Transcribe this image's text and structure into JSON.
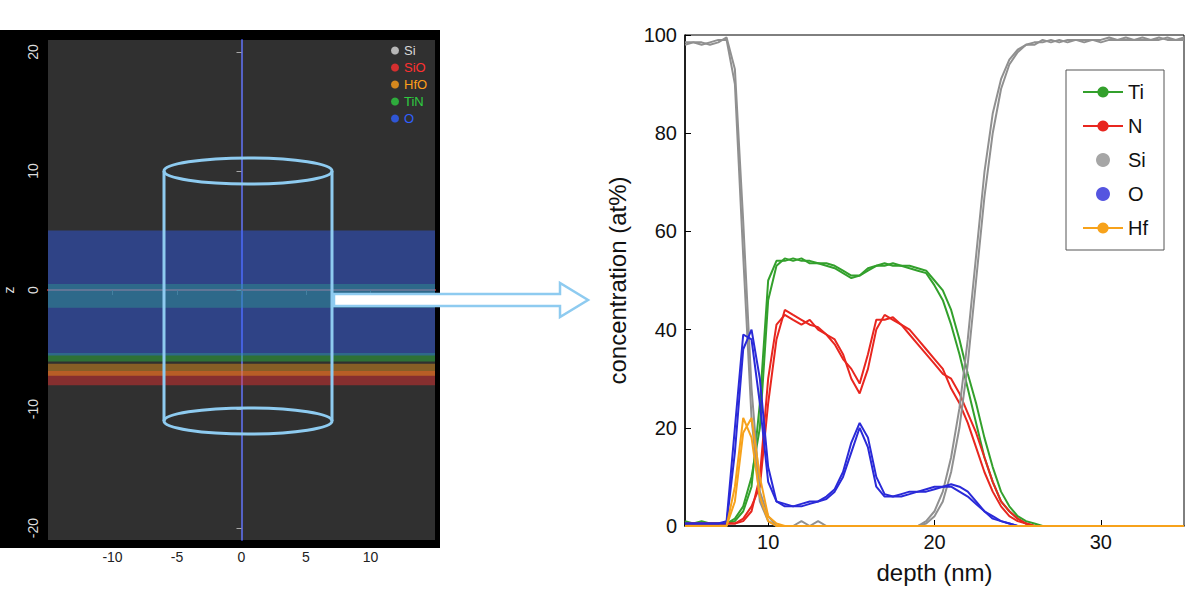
{
  "chart_data": [
    {
      "type": "reconstruction",
      "ylabel": "z",
      "xlim": [
        -15,
        15
      ],
      "xticks": [
        -10,
        -5,
        0,
        5,
        10
      ],
      "ylim": [
        -21,
        21
      ],
      "yticks": [
        -20,
        -10,
        0,
        10,
        20
      ],
      "legend": "top-right",
      "series": [
        {
          "name": "Si",
          "color": "#d9d9d9",
          "bands": [
            [
              -21,
              21
            ]
          ]
        },
        {
          "name": "SiO",
          "color": "#ff3030",
          "bands": [
            [
              -8,
              -6.8
            ]
          ]
        },
        {
          "name": "HfO",
          "color": "#ff9f1a",
          "bands": [
            [
              -7.2,
              -6.2
            ]
          ]
        },
        {
          "name": "TiN",
          "color": "#2ecc40",
          "bands": [
            [
              -1.5,
              0.5
            ],
            [
              -6,
              -5.3
            ]
          ]
        },
        {
          "name": "O",
          "color": "#3060ff",
          "bands": [
            [
              -5.5,
              5
            ]
          ]
        }
      ]
    },
    {
      "type": "line",
      "xlabel": "depth (nm)",
      "ylabel": "concentration (at%)",
      "xlim": [
        5,
        35
      ],
      "xticks": [
        10,
        20,
        30
      ],
      "ylim": [
        0,
        100
      ],
      "yticks": [
        0,
        20,
        40,
        60,
        80,
        100
      ],
      "grid": false,
      "legend": "top-right",
      "x": [
        5,
        5.5,
        6,
        6.5,
        7,
        7.5,
        8,
        8.5,
        9,
        9.5,
        10,
        10.5,
        11,
        11.5,
        12,
        12.5,
        13,
        13.5,
        14,
        14.5,
        15,
        15.5,
        16,
        16.5,
        17,
        17.5,
        18,
        18.5,
        19,
        19.5,
        20,
        20.5,
        21,
        21.5,
        22,
        22.5,
        23,
        23.5,
        24,
        24.5,
        25,
        25.5,
        26,
        26.5,
        27,
        27.5,
        28,
        28.5,
        29,
        29.5,
        30,
        30.5,
        31,
        31.5,
        32,
        32.5,
        33,
        33.5,
        34,
        34.5,
        35
      ],
      "series": [
        {
          "name": "Ti",
          "color": "#33a02c",
          "values": [
            1,
            0.5,
            0.5,
            0.5,
            0.5,
            0.5,
            1,
            3,
            8,
            25,
            50,
            54,
            54,
            54.5,
            54,
            54,
            53.5,
            53.5,
            53,
            52,
            51,
            51,
            52,
            53,
            53,
            53.5,
            53,
            53,
            52.5,
            52,
            50,
            48,
            44,
            38,
            31,
            25,
            18,
            12,
            7,
            4,
            2,
            1,
            0.5,
            0,
            0,
            0,
            0,
            0,
            0,
            0,
            0,
            0,
            0,
            0,
            0,
            0,
            0,
            0,
            0,
            0,
            0
          ]
        },
        {
          "name": "Ti",
          "color": "#33a02c",
          "values": [
            0.5,
            0.5,
            1,
            0.5,
            0.5,
            0.5,
            1.5,
            4,
            10,
            20,
            46,
            53,
            54.5,
            54,
            54.5,
            53.5,
            53.5,
            53,
            52.5,
            51.5,
            50.5,
            51,
            52.5,
            53,
            53.5,
            53,
            53,
            52.5,
            52,
            51.5,
            49,
            46,
            41,
            35,
            28,
            21,
            14,
            9,
            5,
            3,
            1.5,
            0.5,
            0,
            0,
            0,
            0,
            0,
            0,
            0,
            0,
            0,
            0,
            0,
            0,
            0,
            0,
            0,
            0,
            0,
            0,
            0
          ]
        },
        {
          "name": "N",
          "color": "#e8261f",
          "values": [
            0.5,
            0.5,
            0.5,
            0.5,
            0.5,
            0.5,
            0.5,
            1,
            3,
            10,
            30,
            41,
            43,
            42,
            41,
            42,
            40,
            39,
            38,
            35,
            30,
            27,
            32,
            40,
            43,
            42,
            41,
            40,
            38,
            36,
            34,
            32,
            28,
            25,
            21,
            16,
            11,
            7,
            4,
            2,
            1,
            0.5,
            0,
            0,
            0,
            0,
            0,
            0,
            0,
            0,
            0,
            0,
            0,
            0,
            0,
            0,
            0,
            0,
            0,
            0,
            0
          ]
        },
        {
          "name": "N",
          "color": "#e8261f",
          "values": [
            0.5,
            0.5,
            0.5,
            0.5,
            0.5,
            0.5,
            0.5,
            1.5,
            4,
            8,
            25,
            38,
            44,
            43,
            42,
            41,
            40.5,
            39,
            37,
            34,
            32,
            29,
            35,
            42,
            42,
            42.5,
            41,
            39,
            37,
            35,
            33,
            31,
            30,
            27,
            23,
            19,
            14,
            9,
            5,
            3,
            1.5,
            0.5,
            0,
            0,
            0,
            0,
            0,
            0,
            0,
            0,
            0,
            0,
            0,
            0,
            0,
            0,
            0,
            0,
            0,
            0,
            0
          ]
        },
        {
          "name": "Si",
          "color": "#909090",
          "values": [
            98.5,
            98.5,
            98,
            98.5,
            99,
            99,
            90,
            55,
            22,
            5,
            1,
            0,
            0,
            0,
            0,
            0,
            1,
            0,
            0,
            0,
            0,
            0,
            0,
            0,
            0,
            0,
            0,
            0,
            0,
            1,
            3,
            7,
            14,
            24,
            38,
            55,
            72,
            84,
            91,
            95,
            97,
            98,
            98.5,
            98.5,
            99,
            98.5,
            99,
            99,
            98.5,
            99,
            99,
            99.5,
            99,
            99,
            99,
            99.5,
            99,
            99,
            99.5,
            99,
            99
          ]
        },
        {
          "name": "Si",
          "color": "#909090",
          "values": [
            98,
            98.5,
            98.5,
            98,
            98.5,
            99.5,
            93,
            62,
            28,
            7,
            2,
            0,
            0,
            0,
            1,
            0,
            0,
            0,
            0,
            0,
            0,
            0,
            0,
            0,
            0,
            0,
            0,
            0,
            0,
            0.5,
            2,
            5,
            11,
            20,
            33,
            50,
            67,
            80,
            89,
            94,
            96.5,
            98,
            98,
            99,
            98.5,
            99,
            98.5,
            99,
            99,
            99,
            98.5,
            99,
            99,
            99.5,
            99,
            99,
            99,
            99.5,
            99,
            99,
            99.5
          ]
        },
        {
          "name": "O",
          "color": "#2a2ad8",
          "values": [
            0.5,
            0.5,
            0.5,
            0.5,
            0.5,
            0.5,
            15,
            36,
            40,
            30,
            12,
            5,
            4,
            4,
            4.5,
            5,
            5,
            5.5,
            7,
            10,
            15,
            20,
            16,
            8,
            6,
            6,
            6.5,
            7,
            7,
            7.5,
            8,
            8,
            8.5,
            8,
            7,
            5,
            3,
            2,
            1,
            0.5,
            0,
            0,
            0,
            0,
            0,
            0,
            0,
            0,
            0,
            0,
            0,
            0,
            0,
            0,
            0,
            0,
            0,
            0,
            0,
            0,
            0
          ]
        },
        {
          "name": "O",
          "color": "#2a2ad8",
          "values": [
            0.5,
            0.5,
            0.5,
            0.5,
            0.5,
            1,
            20,
            39,
            38,
            25,
            9,
            5,
            4.5,
            4,
            4,
            4.5,
            5,
            6,
            7.5,
            11,
            17,
            21,
            18,
            10,
            6.5,
            6,
            6,
            6.5,
            7,
            7,
            7.5,
            8,
            8,
            7,
            6,
            4.5,
            3,
            1.5,
            1,
            0.5,
            0,
            0,
            0,
            0,
            0,
            0,
            0,
            0,
            0,
            0,
            0,
            0,
            0,
            0,
            0,
            0,
            0,
            0,
            0,
            0,
            0
          ]
        },
        {
          "name": "Hf",
          "color": "#f7a21b",
          "values": [
            0,
            0,
            0,
            0,
            0,
            0,
            5,
            19,
            22,
            10,
            2,
            0.5,
            0,
            0,
            0,
            0,
            0,
            0,
            0,
            0,
            0,
            0,
            0,
            0,
            0,
            0,
            0,
            0,
            0,
            0,
            0,
            0,
            0,
            0,
            0,
            0,
            0,
            0,
            0,
            0,
            0,
            0,
            0,
            0,
            0,
            0,
            0,
            0,
            0,
            0,
            0,
            0,
            0,
            0,
            0,
            0,
            0,
            0,
            0,
            0,
            0
          ]
        },
        {
          "name": "Hf",
          "color": "#f7a21b",
          "values": [
            0,
            0,
            0,
            0,
            0,
            0,
            8,
            22,
            18,
            6,
            1,
            0,
            0,
            0,
            0,
            0,
            0,
            0,
            0,
            0,
            0,
            0,
            0,
            0,
            0,
            0,
            0,
            0,
            0,
            0,
            0,
            0,
            0,
            0,
            0,
            0,
            0,
            0,
            0,
            0,
            0,
            0,
            0,
            0,
            0,
            0,
            0,
            0,
            0,
            0,
            0,
            0,
            0,
            0,
            0,
            0,
            0,
            0,
            0,
            0,
            0
          ]
        }
      ]
    }
  ]
}
